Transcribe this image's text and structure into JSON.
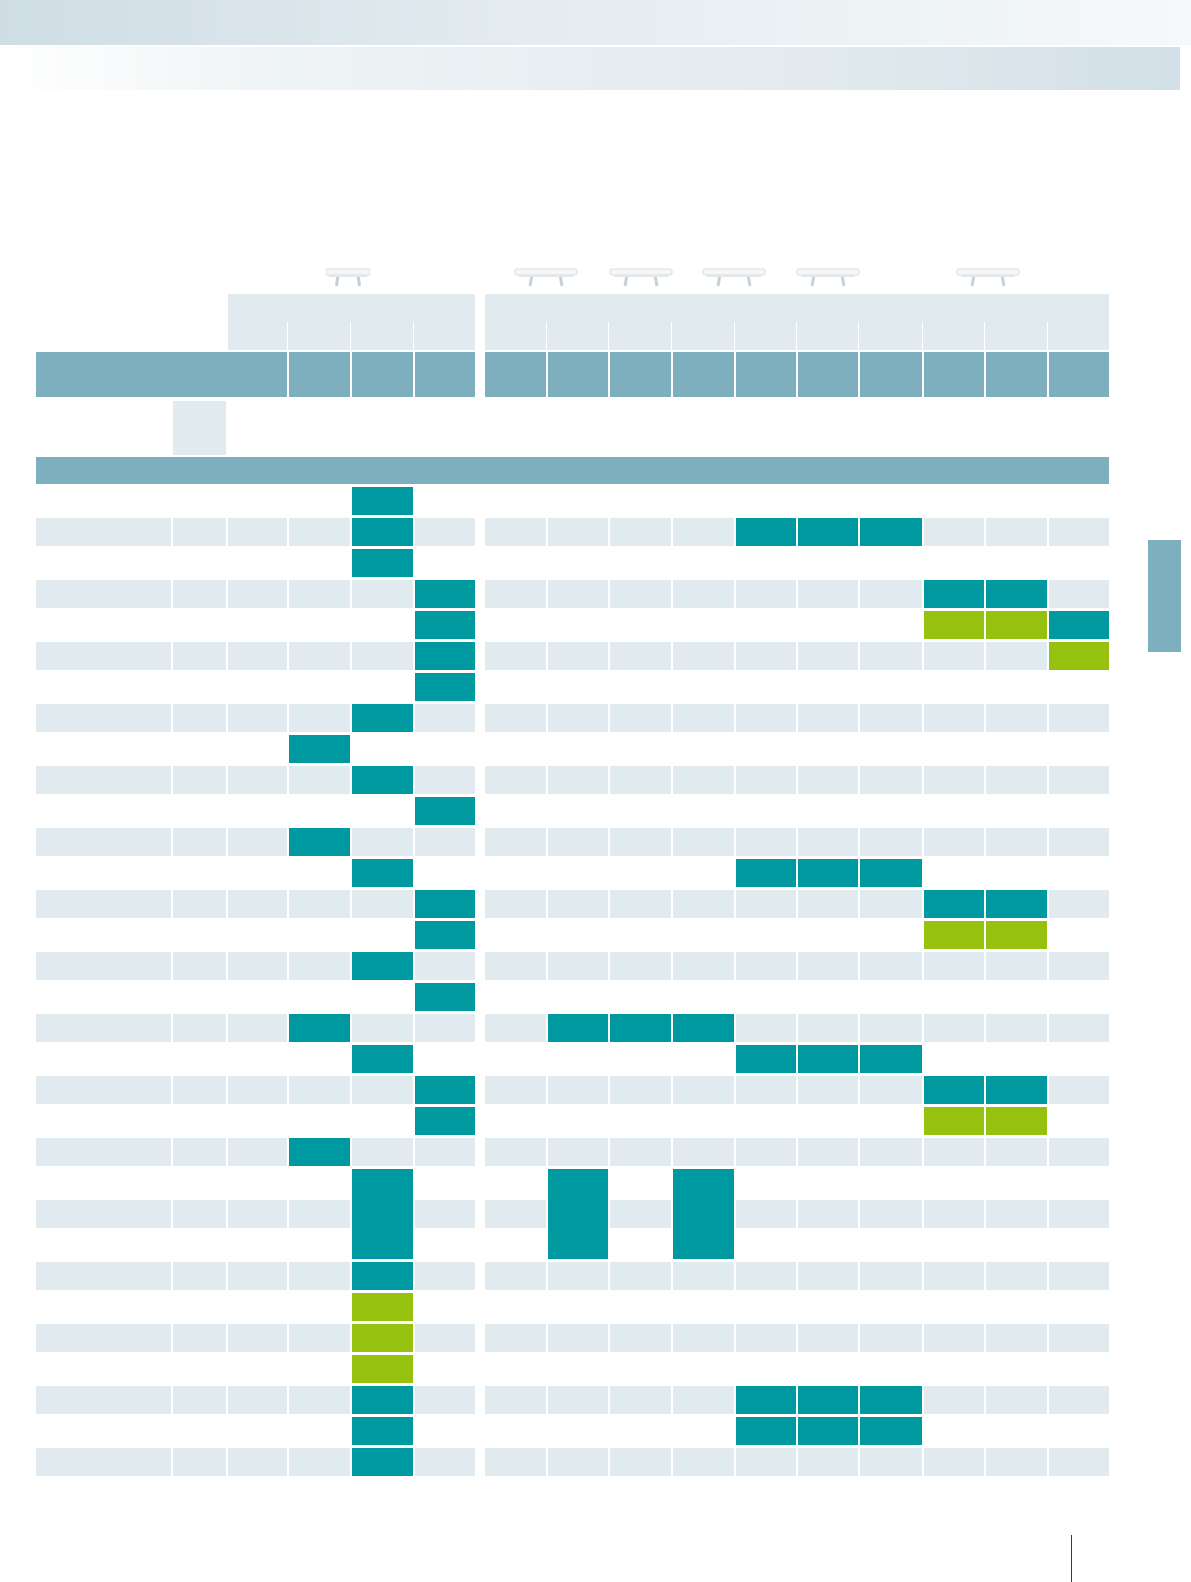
{
  "colors": {
    "header_band": "#e1eaee",
    "column_header": "#7dafbe",
    "row_shade": "#e1eaee",
    "mark_teal": "#00999f",
    "mark_green": "#96c20f",
    "side_tab": "#7dafbe"
  },
  "icons": [
    "bench-icon",
    "table-icon",
    "table-icon",
    "table-icon",
    "table-icon",
    "table-icon"
  ],
  "matrix": {
    "row_count": 32,
    "column_count": 16,
    "rows": [
      {
        "marks": [
          {
            "col": 4,
            "color": "teal"
          }
        ]
      },
      {
        "marks": [
          {
            "col": 4,
            "color": "teal"
          },
          {
            "col": 10,
            "color": "teal"
          },
          {
            "col": 11,
            "color": "teal"
          },
          {
            "col": 12,
            "color": "teal"
          }
        ]
      },
      {
        "marks": [
          {
            "col": 4,
            "color": "teal"
          }
        ]
      },
      {
        "marks": [
          {
            "col": 5,
            "color": "teal"
          },
          {
            "col": 13,
            "color": "teal"
          },
          {
            "col": 14,
            "color": "teal"
          }
        ]
      },
      {
        "marks": [
          {
            "col": 5,
            "color": "teal"
          },
          {
            "col": 13,
            "color": "green"
          },
          {
            "col": 14,
            "color": "green"
          },
          {
            "col": 15,
            "color": "teal"
          }
        ]
      },
      {
        "marks": [
          {
            "col": 5,
            "color": "teal"
          },
          {
            "col": 15,
            "color": "green"
          }
        ]
      },
      {
        "marks": [
          {
            "col": 5,
            "color": "teal"
          }
        ]
      },
      {
        "marks": [
          {
            "col": 4,
            "color": "teal"
          }
        ]
      },
      {
        "marks": [
          {
            "col": 3,
            "color": "teal"
          }
        ]
      },
      {
        "marks": [
          {
            "col": 4,
            "color": "teal"
          }
        ]
      },
      {
        "marks": [
          {
            "col": 5,
            "color": "teal"
          }
        ]
      },
      {
        "marks": [
          {
            "col": 3,
            "color": "teal"
          }
        ]
      },
      {
        "marks": [
          {
            "col": 4,
            "color": "teal"
          },
          {
            "col": 10,
            "color": "teal"
          },
          {
            "col": 11,
            "color": "teal"
          },
          {
            "col": 12,
            "color": "teal"
          }
        ]
      },
      {
        "marks": [
          {
            "col": 5,
            "color": "teal"
          },
          {
            "col": 13,
            "color": "teal"
          },
          {
            "col": 14,
            "color": "teal"
          }
        ]
      },
      {
        "marks": [
          {
            "col": 5,
            "color": "teal"
          },
          {
            "col": 13,
            "color": "green"
          },
          {
            "col": 14,
            "color": "green"
          }
        ]
      },
      {
        "marks": [
          {
            "col": 4,
            "color": "teal"
          }
        ]
      },
      {
        "marks": [
          {
            "col": 5,
            "color": "teal"
          }
        ]
      },
      {
        "marks": [
          {
            "col": 3,
            "color": "teal"
          },
          {
            "col": 7,
            "color": "teal"
          },
          {
            "col": 8,
            "color": "teal"
          },
          {
            "col": 9,
            "color": "teal"
          }
        ]
      },
      {
        "marks": [
          {
            "col": 4,
            "color": "teal"
          },
          {
            "col": 10,
            "color": "teal"
          },
          {
            "col": 11,
            "color": "teal"
          },
          {
            "col": 12,
            "color": "teal"
          }
        ]
      },
      {
        "marks": [
          {
            "col": 5,
            "color": "teal"
          },
          {
            "col": 13,
            "color": "teal"
          },
          {
            "col": 14,
            "color": "teal"
          }
        ]
      },
      {
        "marks": [
          {
            "col": 5,
            "color": "teal"
          },
          {
            "col": 13,
            "color": "green"
          },
          {
            "col": 14,
            "color": "green"
          }
        ]
      },
      {
        "marks": [
          {
            "col": 3,
            "color": "teal"
          }
        ]
      },
      {
        "marks": [
          {
            "col": 4,
            "color": "teal"
          },
          {
            "col": 7,
            "color": "teal"
          },
          {
            "col": 9,
            "color": "teal"
          }
        ]
      },
      {
        "marks": [
          {
            "col": 4,
            "color": "teal"
          },
          {
            "col": 7,
            "color": "teal"
          },
          {
            "col": 9,
            "color": "teal"
          }
        ]
      },
      {
        "marks": [
          {
            "col": 4,
            "color": "teal"
          },
          {
            "col": 7,
            "color": "teal"
          },
          {
            "col": 9,
            "color": "teal"
          }
        ]
      },
      {
        "marks": [
          {
            "col": 4,
            "color": "teal"
          }
        ]
      },
      {
        "marks": [
          {
            "col": 4,
            "color": "green"
          }
        ]
      },
      {
        "marks": [
          {
            "col": 4,
            "color": "green"
          }
        ]
      },
      {
        "marks": [
          {
            "col": 4,
            "color": "green"
          }
        ]
      },
      {
        "marks": [
          {
            "col": 4,
            "color": "teal"
          },
          {
            "col": 10,
            "color": "teal"
          },
          {
            "col": 11,
            "color": "teal"
          },
          {
            "col": 12,
            "color": "teal"
          }
        ]
      },
      {
        "marks": [
          {
            "col": 4,
            "color": "teal"
          },
          {
            "col": 10,
            "color": "teal"
          },
          {
            "col": 11,
            "color": "teal"
          },
          {
            "col": 12,
            "color": "teal"
          }
        ]
      },
      {
        "marks": [
          {
            "col": 4,
            "color": "teal"
          }
        ]
      }
    ]
  }
}
